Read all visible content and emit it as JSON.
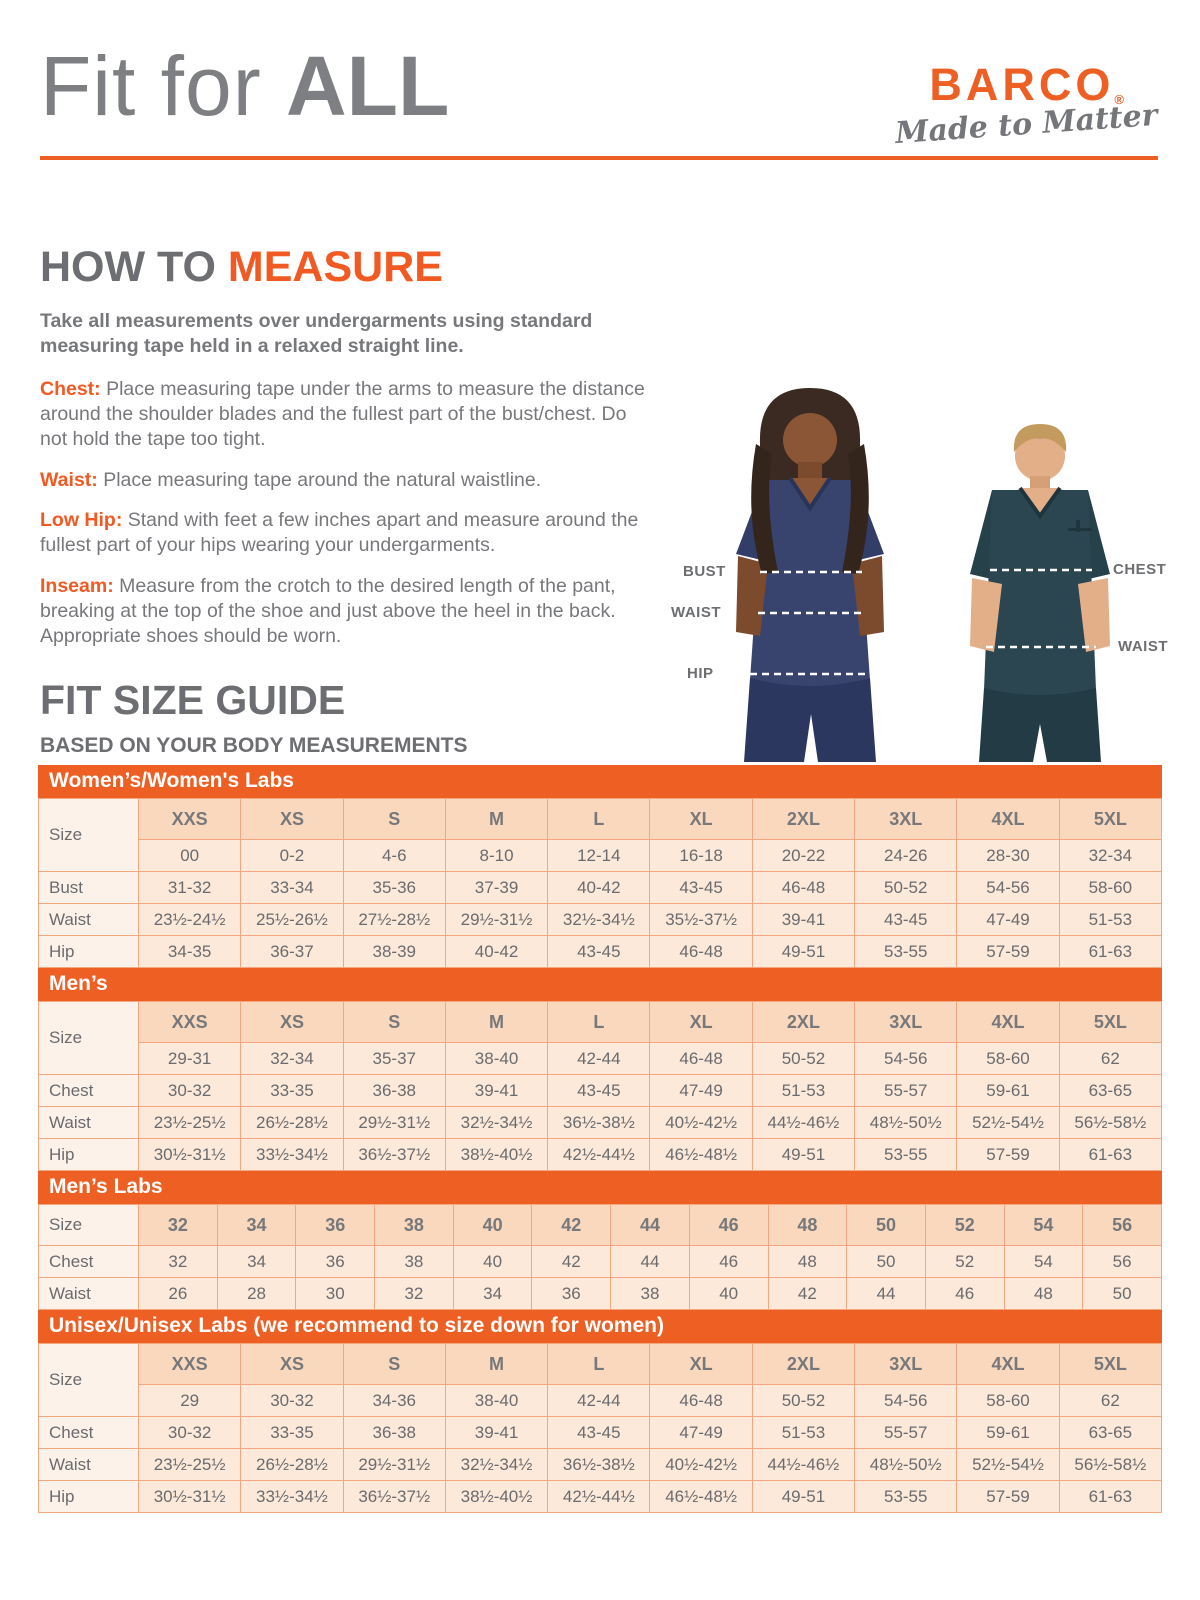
{
  "header": {
    "title_regular": "Fit for ",
    "title_bold": "ALL"
  },
  "brand": {
    "name": "BARCO",
    "registered": "®",
    "tagline": "Made to Matter"
  },
  "how_to_measure": {
    "heading_gray": "HOW TO ",
    "heading_orange": "MEASURE",
    "intro": "Take all measurements over undergarments using standard measuring tape held in a relaxed straight line.",
    "items": [
      {
        "label": "Chest:",
        "text": "Place measuring tape under the arms to measure the distance around the shoulder blades and the fullest part of the bust/chest. Do not hold the tape too tight."
      },
      {
        "label": "Waist:",
        "text": "Place measuring tape around the natural waistline."
      },
      {
        "label": "Low Hip:",
        "text": "Stand with feet a few inches apart and measure around the fullest part of your hips wearing your undergarments."
      },
      {
        "label": "Inseam:",
        "text": "Measure from the crotch to the desired length of the pant, breaking at the top of the shoe and just above the heel in the back. Appropriate shoes should be worn."
      }
    ]
  },
  "figure": {
    "female": {
      "bust": "BUST",
      "waist": "WAIST",
      "hip": "HIP"
    },
    "male": {
      "chest": "CHEST",
      "waist": "WAIST"
    }
  },
  "size_guide": {
    "heading": "FIT SIZE GUIDE",
    "subheading": "BASED ON YOUR BODY MEASUREMENTS",
    "tables": [
      {
        "title": "Women’s/Women's Labs",
        "size_label": "Size",
        "size_headers": [
          "XXS",
          "XS",
          "S",
          "M",
          "L",
          "XL",
          "2XL",
          "3XL",
          "4XL",
          "5XL"
        ],
        "numeric_sizes": [
          "00",
          "0-2",
          "4-6",
          "8-10",
          "12-14",
          "16-18",
          "20-22",
          "24-26",
          "28-30",
          "32-34"
        ],
        "rows": [
          {
            "label": "Bust",
            "values": [
              "31-32",
              "33-34",
              "35-36",
              "37-39",
              "40-42",
              "43-45",
              "46-48",
              "50-52",
              "54-56",
              "58-60"
            ]
          },
          {
            "label": "Waist",
            "values": [
              "23½-24½",
              "25½-26½",
              "27½-28½",
              "29½-31½",
              "32½-34½",
              "35½-37½",
              "39-41",
              "43-45",
              "47-49",
              "51-53"
            ]
          },
          {
            "label": "Hip",
            "values": [
              "34-35",
              "36-37",
              "38-39",
              "40-42",
              "43-45",
              "46-48",
              "49-51",
              "53-55",
              "57-59",
              "61-63"
            ]
          }
        ]
      },
      {
        "title": "Men’s",
        "size_label": "Size",
        "size_headers": [
          "XXS",
          "XS",
          "S",
          "M",
          "L",
          "XL",
          "2XL",
          "3XL",
          "4XL",
          "5XL"
        ],
        "numeric_sizes": [
          "29-31",
          "32-34",
          "35-37",
          "38-40",
          "42-44",
          "46-48",
          "50-52",
          "54-56",
          "58-60",
          "62"
        ],
        "rows": [
          {
            "label": "Chest",
            "values": [
              "30-32",
              "33-35",
              "36-38",
              "39-41",
              "43-45",
              "47-49",
              "51-53",
              "55-57",
              "59-61",
              "63-65"
            ]
          },
          {
            "label": "Waist",
            "values": [
              "23½-25½",
              "26½-28½",
              "29½-31½",
              "32½-34½",
              "36½-38½",
              "40½-42½",
              "44½-46½",
              "48½-50½",
              "52½-54½",
              "56½-58½"
            ]
          },
          {
            "label": "Hip",
            "values": [
              "30½-31½",
              "33½-34½",
              "36½-37½",
              "38½-40½",
              "42½-44½",
              "46½-48½",
              "49-51",
              "53-55",
              "57-59",
              "61-63"
            ]
          }
        ]
      },
      {
        "title": "Men’s Labs",
        "size_label": "Size",
        "size_headers": [
          "32",
          "34",
          "36",
          "38",
          "40",
          "42",
          "44",
          "46",
          "48",
          "50",
          "52",
          "54",
          "56"
        ],
        "rows": [
          {
            "label": "Chest",
            "values": [
              "32",
              "34",
              "36",
              "38",
              "40",
              "42",
              "44",
              "46",
              "48",
              "50",
              "52",
              "54",
              "56"
            ]
          },
          {
            "label": "Waist",
            "values": [
              "26",
              "28",
              "30",
              "32",
              "34",
              "36",
              "38",
              "40",
              "42",
              "44",
              "46",
              "48",
              "50"
            ]
          }
        ]
      },
      {
        "title": "Unisex/Unisex Labs (we recommend to size down for women)",
        "size_label": "Size",
        "size_headers": [
          "XXS",
          "XS",
          "S",
          "M",
          "L",
          "XL",
          "2XL",
          "3XL",
          "4XL",
          "5XL"
        ],
        "numeric_sizes": [
          "29",
          "30-32",
          "34-36",
          "38-40",
          "42-44",
          "46-48",
          "50-52",
          "54-56",
          "58-60",
          "62"
        ],
        "rows": [
          {
            "label": "Chest",
            "values": [
              "30-32",
              "33-35",
              "36-38",
              "39-41",
              "43-45",
              "47-49",
              "51-53",
              "55-57",
              "59-61",
              "63-65"
            ]
          },
          {
            "label": "Waist",
            "values": [
              "23½-25½",
              "26½-28½",
              "29½-31½",
              "32½-34½",
              "36½-38½",
              "40½-42½",
              "44½-46½",
              "48½-50½",
              "52½-54½",
              "56½-58½"
            ]
          },
          {
            "label": "Hip",
            "values": [
              "30½-31½",
              "33½-34½",
              "36½-37½",
              "38½-40½",
              "42½-44½",
              "46½-48½",
              "49-51",
              "53-55",
              "57-59",
              "61-63"
            ]
          }
        ]
      }
    ]
  },
  "colors": {
    "accent_orange": "#ee5f24",
    "orange_text": "#f15a22",
    "text_gray": "#6d6e71",
    "table_header_bg": "#fad8bd",
    "table_cell_bg": "#fce9da",
    "table_label_bg": "#fdf2e9",
    "table_border": "#f2a77e",
    "female_scrub": "#2e3a66",
    "male_scrub": "#25424e"
  }
}
